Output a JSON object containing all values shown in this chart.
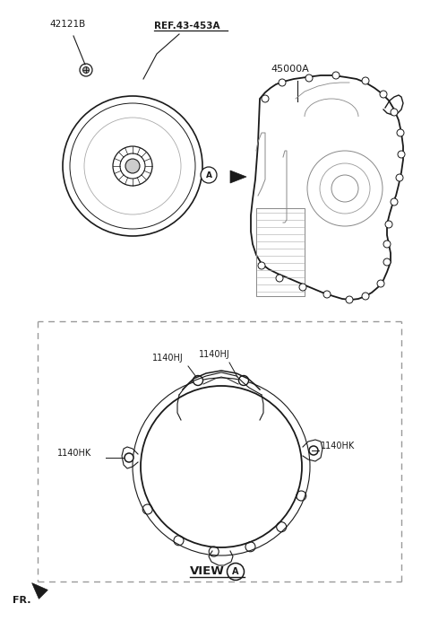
{
  "bg_color": "#ffffff",
  "line_color": "#1a1a1a",
  "gray_line": "#666666",
  "dash_color": "#999999",
  "label_42121B": "42121B",
  "label_ref": "REF.43-453A",
  "label_45000A": "45000A",
  "label_1140HJ_1": "1140HJ",
  "label_1140HJ_2": "1140HJ",
  "label_1140HK_L": "1140HK",
  "label_1140HK_R": "1140HK",
  "label_view": "VIEW",
  "label_view_A": "A",
  "label_FR": "FR.",
  "fig_width": 4.8,
  "fig_height": 6.92,
  "dpi": 100
}
